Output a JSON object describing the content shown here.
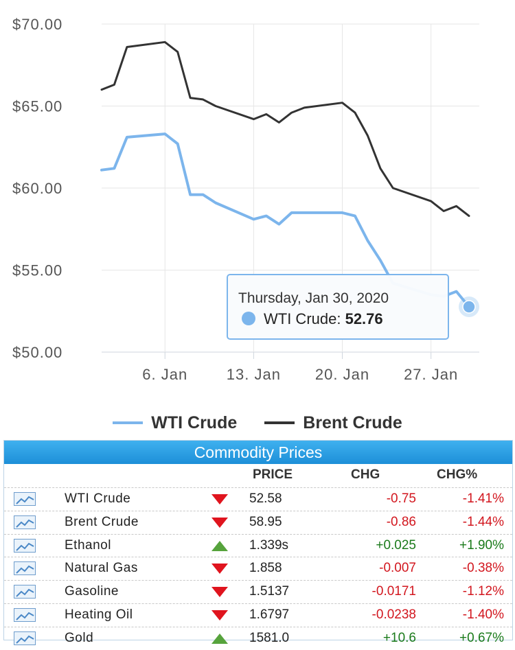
{
  "chart_data": {
    "type": "line",
    "x_ticks": [
      "6. Jan",
      "13. Jan",
      "20. Jan",
      "27. Jan"
    ],
    "y_ticks": [
      "$70.00",
      "$65.00",
      "$60.00",
      "$55.00",
      "$50.00"
    ],
    "ylim": [
      50,
      70
    ],
    "x_range": [
      "2020-01-01",
      "2020-01-30"
    ],
    "series": [
      {
        "name": "WTI Crude",
        "color": "#7cb5ec",
        "points": [
          [
            "2020-01-01",
            61.1
          ],
          [
            "2020-01-02",
            61.2
          ],
          [
            "2020-01-03",
            63.1
          ],
          [
            "2020-01-06",
            63.3
          ],
          [
            "2020-01-07",
            62.7
          ],
          [
            "2020-01-08",
            59.6
          ],
          [
            "2020-01-09",
            59.6
          ],
          [
            "2020-01-10",
            59.1
          ],
          [
            "2020-01-13",
            58.1
          ],
          [
            "2020-01-14",
            58.3
          ],
          [
            "2020-01-15",
            57.8
          ],
          [
            "2020-01-16",
            58.5
          ],
          [
            "2020-01-17",
            58.5
          ],
          [
            "2020-01-20",
            58.5
          ],
          [
            "2020-01-21",
            58.3
          ],
          [
            "2020-01-22",
            56.8
          ],
          [
            "2020-01-23",
            55.6
          ],
          [
            "2020-01-24",
            54.2
          ],
          [
            "2020-01-27",
            53.5
          ],
          [
            "2020-01-28",
            53.4
          ],
          [
            "2020-01-29",
            53.7
          ],
          [
            "2020-01-30",
            52.76
          ]
        ]
      },
      {
        "name": "Brent Crude",
        "color": "#333333",
        "points": [
          [
            "2020-01-01",
            66.0
          ],
          [
            "2020-01-02",
            66.3
          ],
          [
            "2020-01-03",
            68.6
          ],
          [
            "2020-01-06",
            68.9
          ],
          [
            "2020-01-07",
            68.3
          ],
          [
            "2020-01-08",
            65.5
          ],
          [
            "2020-01-09",
            65.4
          ],
          [
            "2020-01-10",
            65.0
          ],
          [
            "2020-01-13",
            64.2
          ],
          [
            "2020-01-14",
            64.5
          ],
          [
            "2020-01-15",
            64.0
          ],
          [
            "2020-01-16",
            64.6
          ],
          [
            "2020-01-17",
            64.9
          ],
          [
            "2020-01-20",
            65.2
          ],
          [
            "2020-01-21",
            64.6
          ],
          [
            "2020-01-22",
            63.2
          ],
          [
            "2020-01-23",
            61.2
          ],
          [
            "2020-01-24",
            60.0
          ],
          [
            "2020-01-27",
            59.2
          ],
          [
            "2020-01-28",
            58.6
          ],
          [
            "2020-01-29",
            58.9
          ],
          [
            "2020-01-30",
            58.3
          ]
        ]
      }
    ],
    "tooltip": {
      "date": "Thursday, Jan 30, 2020",
      "series": "WTI Crude:",
      "value": "52.76"
    }
  },
  "legend": [
    "WTI Crude",
    "Brent Crude"
  ],
  "table": {
    "title": "Commodity Prices",
    "headers": {
      "price": "PRICE",
      "chg": "CHG",
      "chgp": "CHG%"
    },
    "rows": [
      {
        "name": "WTI Crude",
        "dir": "down",
        "price": "52.58",
        "chg": "-0.75",
        "chgp": "-1.41%"
      },
      {
        "name": "Brent Crude",
        "dir": "down",
        "price": "58.95",
        "chg": "-0.86",
        "chgp": "-1.44%"
      },
      {
        "name": "Ethanol",
        "dir": "up",
        "price": "1.339s",
        "chg": "+0.025",
        "chgp": "+1.90%"
      },
      {
        "name": "Natural Gas",
        "dir": "down",
        "price": "1.858",
        "chg": "-0.007",
        "chgp": "-0.38%"
      },
      {
        "name": "Gasoline",
        "dir": "down",
        "price": "1.5137",
        "chg": "-0.0171",
        "chgp": "-1.12%"
      },
      {
        "name": "Heating Oil",
        "dir": "down",
        "price": "1.6797",
        "chg": "-0.0238",
        "chgp": "-1.40%"
      },
      {
        "name": "Gold",
        "dir": "up",
        "price": "1581.0",
        "chg": "+10.6",
        "chgp": "+0.67%"
      }
    ]
  }
}
